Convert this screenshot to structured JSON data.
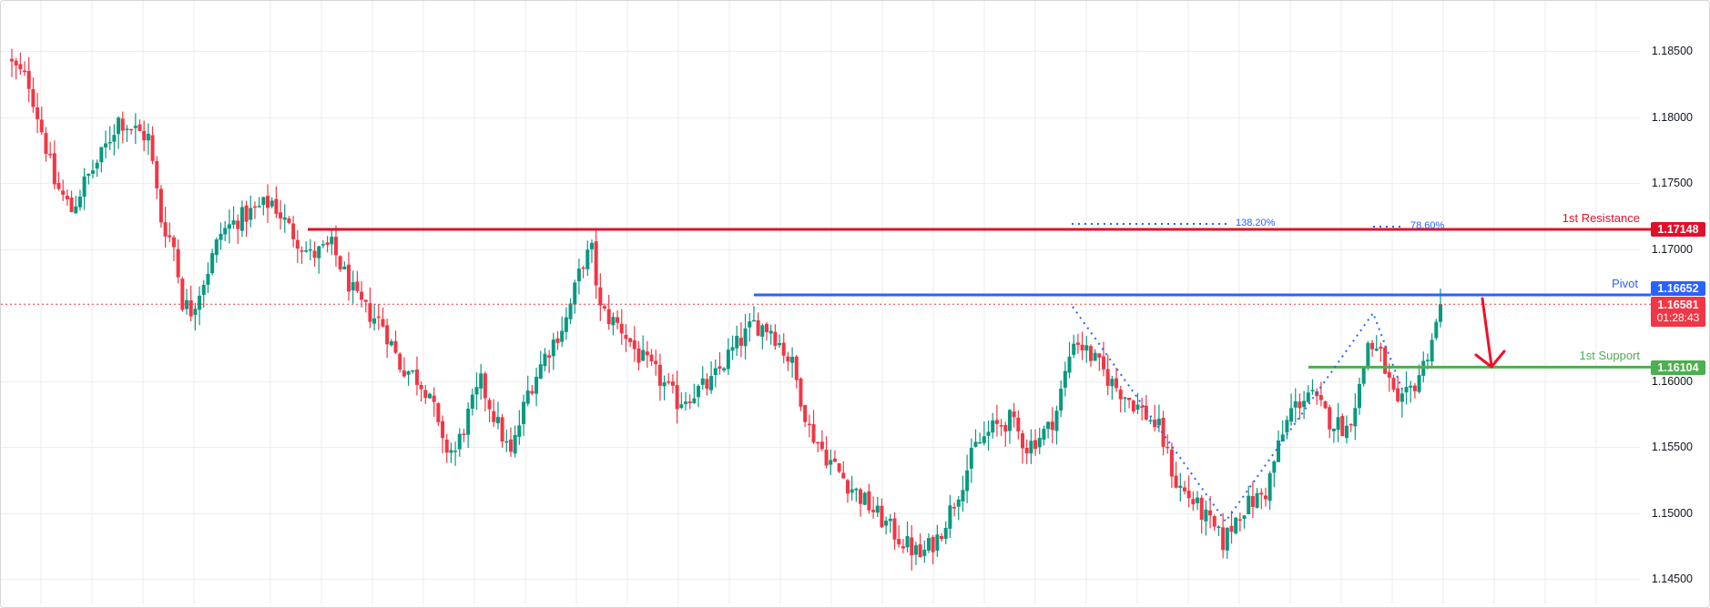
{
  "chart": {
    "symbol_pair_note": "",
    "colors": {
      "up": "#089981",
      "down": "#F23645",
      "resistance": "#e0102a",
      "pivot": "#2962ff",
      "support": "#4caf50",
      "fib": "#2962ff",
      "current_price": "#F23645",
      "grid": "#eeeeee",
      "arrow": "#f0102a"
    }
  },
  "price_axis": {
    "ticks": [
      "1.18500",
      "1.18000",
      "1.17500",
      "1.17000",
      "1.16000",
      "1.15500",
      "1.15000",
      "1.14500"
    ]
  },
  "levels": {
    "resistance": {
      "label": "1st Resistance",
      "price": "1.17148"
    },
    "pivot": {
      "label": "Pivot",
      "price": "1.16652"
    },
    "support": {
      "label": "1st Support",
      "price": "1.16104"
    },
    "current": {
      "price": "1.16581",
      "countdown": "01:28:43"
    }
  },
  "fib_labels": {
    "ext": "138.20%",
    "retr": "78.60%"
  },
  "chart_data": {
    "type": "candlestick",
    "title": "",
    "xlabel": "",
    "ylabel": "",
    "ylim": [
      1.1425,
      1.189
    ],
    "y_ticks": [
      1.185,
      1.18,
      1.175,
      1.17,
      1.16,
      1.155,
      1.15,
      1.145
    ],
    "grid": true,
    "horizontal_levels": [
      {
        "name": "1st Resistance",
        "value": 1.17148,
        "color": "#e0102a"
      },
      {
        "name": "Pivot",
        "value": 1.16652,
        "color": "#2962ff"
      },
      {
        "name": "1st Support",
        "value": 1.16104,
        "color": "#4caf50"
      }
    ],
    "current_price": 1.16581,
    "bar_countdown": "01:28:43",
    "fibonacci": [
      {
        "label": "138.20%",
        "value": 1.1718
      },
      {
        "label": "78.60%",
        "value": 1.1718
      }
    ],
    "annotation": "red arrow pointing down from pivot toward 1st support",
    "close_path_price": [
      [
        0,
        1.18396
      ],
      [
        4,
        1.18259
      ],
      [
        8,
        1.17776
      ],
      [
        10,
        1.175
      ],
      [
        14,
        1.17293
      ],
      [
        17,
        1.175
      ],
      [
        21,
        1.17707
      ],
      [
        25,
        1.17983
      ],
      [
        30,
        1.17879
      ],
      [
        32,
        1.17845
      ],
      [
        35,
        1.17224
      ],
      [
        38,
        1.17017
      ],
      [
        40,
        1.16603
      ],
      [
        42,
        1.16534
      ],
      [
        46,
        1.16845
      ],
      [
        49,
        1.17121
      ],
      [
        53,
        1.17224
      ],
      [
        57,
        1.17293
      ],
      [
        61,
        1.17362
      ],
      [
        65,
        1.17155
      ],
      [
        70,
        1.16948
      ],
      [
        75,
        1.17017
      ],
      [
        77,
        1.16879
      ],
      [
        81,
        1.16603
      ],
      [
        83,
        1.16534
      ],
      [
        87,
        1.16431
      ],
      [
        91,
        1.16121
      ],
      [
        94,
        1.16052
      ],
      [
        98,
        1.15914
      ],
      [
        101,
        1.155
      ],
      [
        104,
        1.15466
      ],
      [
        107,
        1.15741
      ],
      [
        110,
        1.15983
      ],
      [
        113,
        1.15741
      ],
      [
        117,
        1.15431
      ],
      [
        121,
        1.15914
      ],
      [
        125,
        1.1619
      ],
      [
        130,
        1.16466
      ],
      [
        134,
        1.16914
      ],
      [
        136,
        1.16983
      ],
      [
        138,
        1.16534
      ],
      [
        143,
        1.16397
      ],
      [
        147,
        1.1619
      ],
      [
        151,
        1.16052
      ],
      [
        156,
        1.15845
      ],
      [
        160,
        1.15914
      ],
      [
        164,
        1.15983
      ],
      [
        168,
        1.1619
      ],
      [
        174,
        1.16431
      ],
      [
        178,
        1.16397
      ],
      [
        183,
        1.16121
      ],
      [
        187,
        1.15638
      ],
      [
        191,
        1.15431
      ],
      [
        196,
        1.15224
      ],
      [
        200,
        1.15086
      ],
      [
        205,
        1.14914
      ],
      [
        208,
        1.1481
      ],
      [
        213,
        1.14672
      ],
      [
        217,
        1.1481
      ],
      [
        221,
        1.15086
      ],
      [
        226,
        1.155
      ],
      [
        230,
        1.15638
      ],
      [
        234,
        1.15707
      ],
      [
        238,
        1.155
      ],
      [
        243,
        1.15638
      ],
      [
        245,
        1.15776
      ],
      [
        249,
        1.16328
      ],
      [
        253,
        1.1619
      ],
      [
        258,
        1.15983
      ],
      [
        265,
        1.15776
      ],
      [
        269,
        1.15638
      ],
      [
        273,
        1.15224
      ],
      [
        277,
        1.15086
      ],
      [
        281,
        1.14914
      ],
      [
        284,
        1.14776
      ],
      [
        288,
        1.15017
      ],
      [
        294,
        1.15155
      ],
      [
        297,
        1.155
      ],
      [
        300,
        1.15776
      ],
      [
        304,
        1.15914
      ],
      [
        309,
        1.15707
      ],
      [
        313,
        1.15638
      ],
      [
        316,
        1.15948
      ],
      [
        318,
        1.16293
      ],
      [
        321,
        1.1619
      ],
      [
        325,
        1.15776
      ],
      [
        329,
        1.15983
      ],
      [
        331,
        1.16121
      ],
      [
        333,
        1.16328
      ],
      [
        335,
        1.16528
      ]
    ],
    "candle_count": 336
  }
}
